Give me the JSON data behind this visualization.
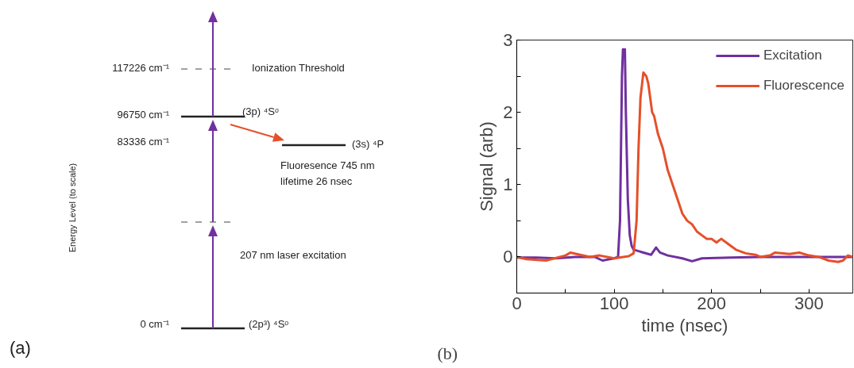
{
  "chart_data": [
    {
      "type": "other",
      "ylabel": "Energy Level (to scale)",
      "annotations": [
        "(a)",
        "117226 cm⁻¹",
        "Ionization Threshold",
        "96750 cm⁻¹",
        "(3p) ⁴Sᵒ",
        "83336 cm⁻¹",
        "(3s) ⁴P",
        "Fluoresence 745 nm",
        "lifetime 26 nsec",
        "207 nm laser excitation",
        "0 cm⁻¹",
        "(2p³) ⁴Sᵒ"
      ]
    },
    {
      "type": "line",
      "xlabel": "time (nsec)",
      "ylabel": "Signal (arb)",
      "annotations": [
        "(b)"
      ],
      "legend": "top right",
      "grid": false,
      "xlim": [
        0,
        345
      ],
      "ylim": [
        -0.5,
        3
      ],
      "xticks": [
        0,
        {
          "value": 50,
          "label": null
        },
        100,
        {
          "value": 150,
          "label": null
        },
        200,
        {
          "value": 250,
          "label": null
        },
        300
      ],
      "yticks": [
        0,
        {
          "value": 0.5,
          "label": null
        },
        1,
        {
          "value": 1.5,
          "label": null
        },
        2,
        {
          "value": 2.5,
          "label": null
        },
        3
      ],
      "series": [
        {
          "name": "Excitation",
          "color": "#7030a0",
          "x": [
            0,
            20,
            40,
            60,
            80,
            88,
            100,
            104,
            106,
            108,
            109,
            111,
            112,
            114,
            116,
            118,
            120,
            125,
            130,
            138,
            143,
            147,
            155,
            170,
            180,
            190,
            220,
            250,
            280,
            300,
            345
          ],
          "values": [
            -0.01,
            -0.01,
            -0.02,
            0,
            0,
            -0.05,
            -0.02,
            0,
            0.5,
            2.5,
            2.87,
            2.87,
            2.0,
            0.8,
            0.3,
            0.15,
            0.1,
            0.08,
            0.06,
            0.03,
            0.13,
            0.06,
            0.02,
            -0.02,
            -0.06,
            -0.02,
            -0.01,
            0,
            0,
            0,
            0
          ]
        },
        {
          "name": "Fluorescence",
          "color": "#e5502a",
          "x": [
            0,
            10,
            30,
            50,
            55,
            65,
            75,
            85,
            100,
            115,
            120,
            123,
            125,
            127,
            130,
            133,
            135,
            139,
            141,
            145,
            150,
            155,
            160,
            165,
            170,
            175,
            180,
            185,
            190,
            195,
            200,
            205,
            210,
            215,
            220,
            225,
            235,
            245,
            250,
            260,
            265,
            280,
            290,
            300,
            310,
            320,
            330,
            335,
            340,
            345
          ],
          "values": [
            0,
            -0.03,
            -0.05,
            0.02,
            0.06,
            0.03,
            0,
            0.02,
            -0.02,
            0.01,
            0.05,
            0.5,
            1.5,
            2.2,
            2.55,
            2.5,
            2.4,
            2.0,
            1.95,
            1.7,
            1.5,
            1.2,
            1.0,
            0.8,
            0.6,
            0.5,
            0.45,
            0.35,
            0.3,
            0.25,
            0.25,
            0.2,
            0.25,
            0.2,
            0.15,
            0.1,
            0.05,
            0.03,
            0,
            0.02,
            0.06,
            0.04,
            0.06,
            0.02,
            0,
            -0.05,
            -0.07,
            -0.05,
            0.02,
            0
          ]
        }
      ]
    }
  ]
}
